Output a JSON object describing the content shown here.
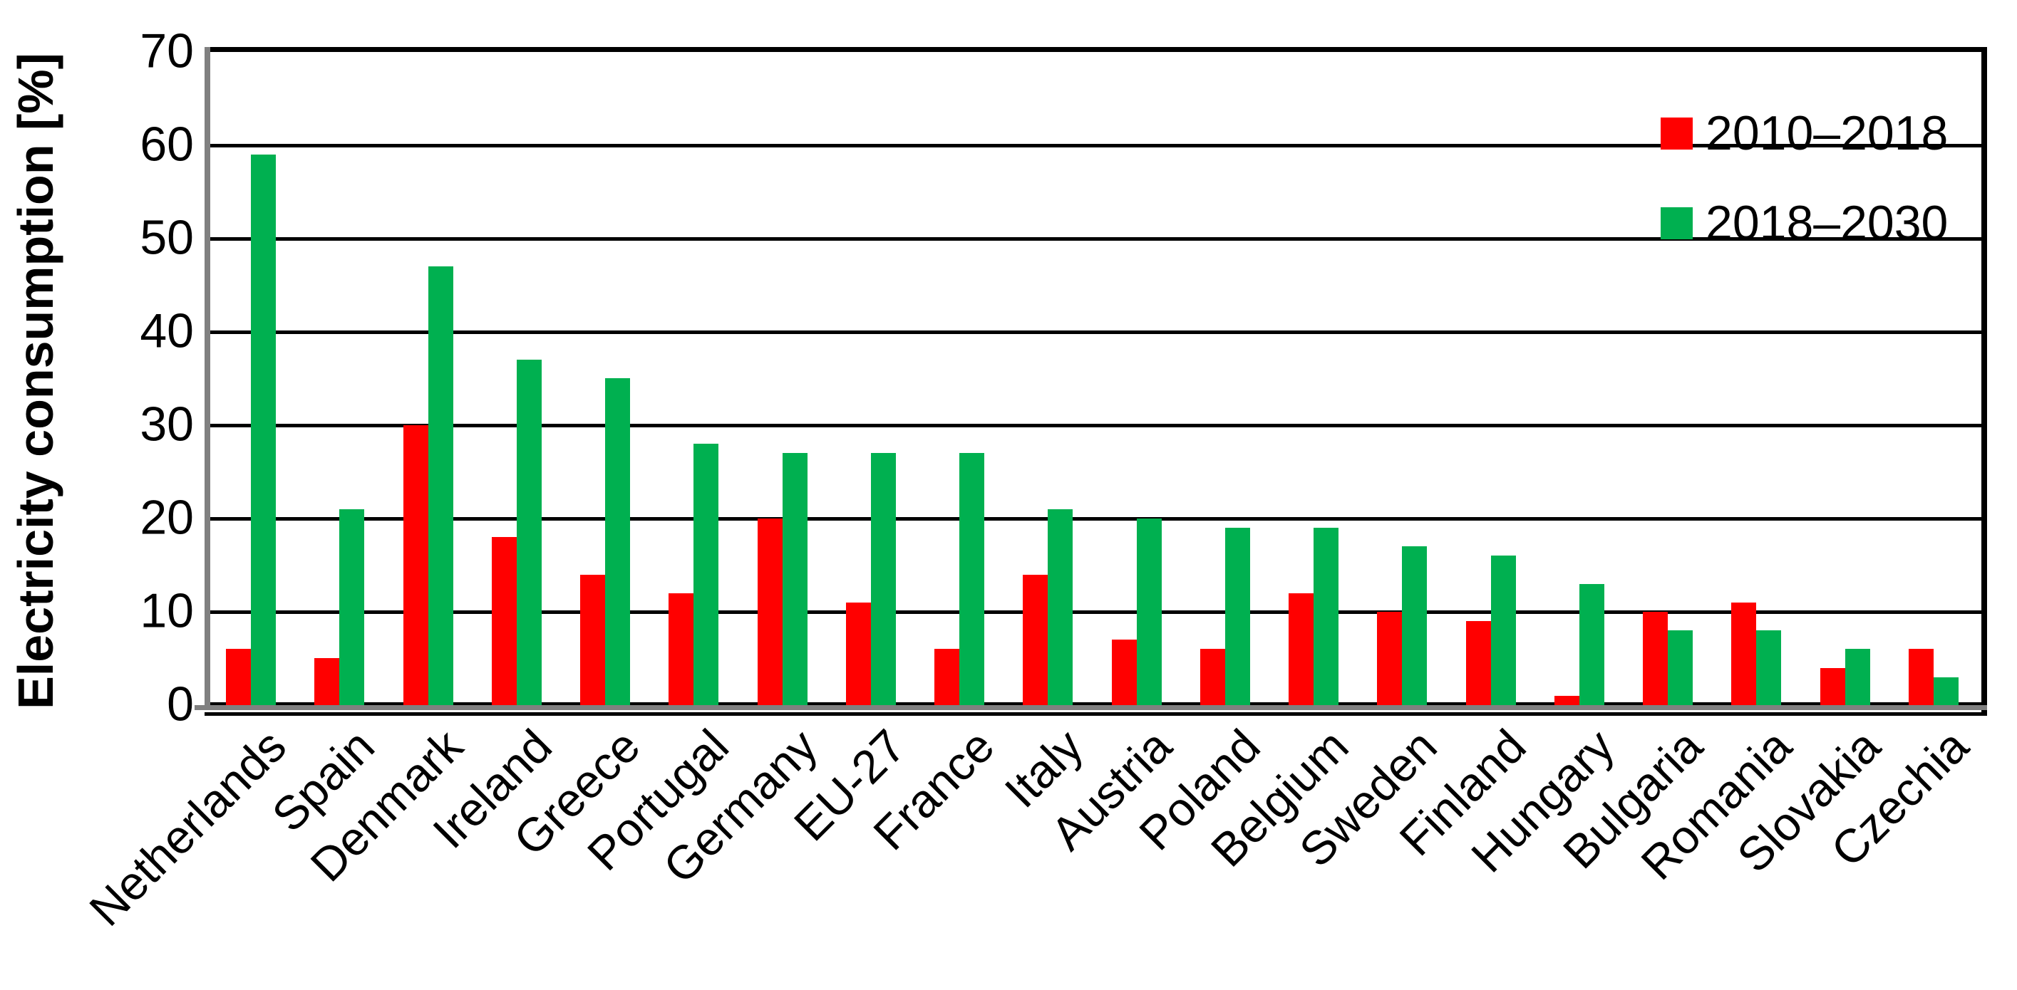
{
  "chart_data": {
    "type": "bar",
    "title": "",
    "xlabel": "",
    "ylabel": "Electricity consumption [%]",
    "ylim": [
      0,
      70
    ],
    "yticks": [
      0,
      10,
      20,
      30,
      40,
      50,
      60,
      70
    ],
    "grid": true,
    "legend_position": "top-right-inside",
    "categories": [
      "Netherlands",
      "Spain",
      "Denmark",
      "Ireland",
      "Greece",
      "Portugal",
      "Germany",
      "EU-27",
      "France",
      "Italy",
      "Austria",
      "Poland",
      "Belgium",
      "Sweden",
      "Finland",
      "Hungary",
      "Bulgaria",
      "Romania",
      "Slovakia",
      "Czechia"
    ],
    "series": [
      {
        "name": "2010–2018",
        "color": "#FF0000",
        "values": [
          6,
          5,
          30,
          18,
          14,
          12,
          20,
          11,
          6,
          14,
          7,
          6,
          12,
          10,
          9,
          1,
          10,
          11,
          4,
          6
        ]
      },
      {
        "name": "2018–2030",
        "color": "#00B050",
        "values": [
          59,
          21,
          47,
          37,
          35,
          28,
          27,
          27,
          27,
          21,
          20,
          19,
          19,
          17,
          16,
          13,
          8,
          8,
          6,
          3
        ]
      }
    ]
  },
  "colors": {
    "background": "#FFFFFF",
    "plot_border": "#000000",
    "gridline": "#000000",
    "axis_line_gray": "#808080",
    "text": "#000000"
  }
}
